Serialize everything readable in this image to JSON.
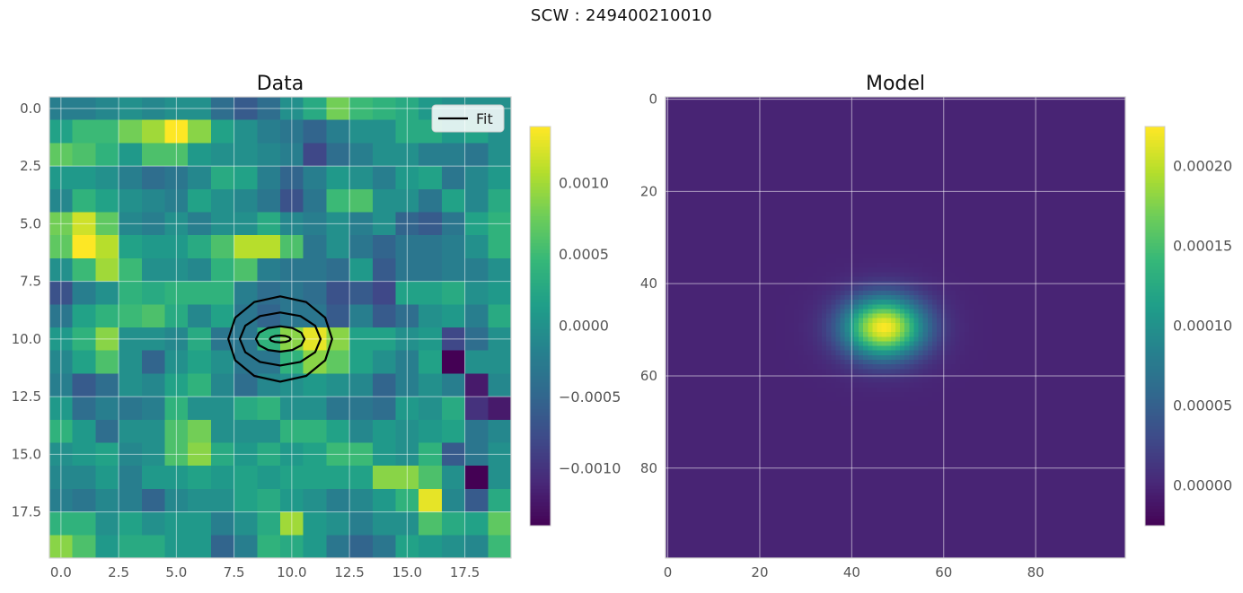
{
  "figure": {
    "suptitle": "SCW : 249400210010"
  },
  "chart_data": [
    {
      "type": "heatmap",
      "title": "Data",
      "xlabel": "",
      "ylabel": "",
      "xlim": [
        -0.5,
        19.5
      ],
      "ylim": [
        19.5,
        -0.5
      ],
      "xticks": [
        "0.0",
        "2.5",
        "5.0",
        "7.5",
        "10.0",
        "12.5",
        "15.0",
        "17.5"
      ],
      "yticks": [
        "0.0",
        "2.5",
        "5.0",
        "7.5",
        "10.0",
        "12.5",
        "15.0",
        "17.5"
      ],
      "xtick_values": [
        0,
        2.5,
        5,
        7.5,
        10,
        12.5,
        15,
        17.5
      ],
      "ytick_values": [
        0,
        2.5,
        5,
        7.5,
        10,
        12.5,
        15,
        17.5
      ],
      "grid": true,
      "colormap": "viridis",
      "vmin": -0.0014,
      "vmax": 0.0014,
      "colorbar_ticks": [
        "0.0010",
        "0.0005",
        "0.0000",
        "−0.0005",
        "−0.0010"
      ],
      "colorbar_tick_values": [
        0.001,
        0.0005,
        0.0,
        -0.0005,
        -0.001
      ],
      "legend": {
        "label": "Fit",
        "position": "upper right"
      },
      "contours": {
        "center": [
          9.5,
          10.0
        ],
        "rings": [
          {
            "rx": 0.45,
            "ry": 0.15
          },
          {
            "rx": 1.05,
            "ry": 0.55
          },
          {
            "rx": 1.75,
            "ry": 1.15
          },
          {
            "rx": 2.25,
            "ry": 1.85
          }
        ]
      },
      "values": [
        [
          -0.0002,
          -0.0002,
          -0.0001,
          0.0,
          -0.0001,
          0.0,
          0.0,
          -0.0004,
          -0.0006,
          -0.0004,
          0.0,
          0.0003,
          0.0008,
          0.0005,
          0.0004,
          0.0003,
          0.0001,
          0.0,
          0.0,
          0.0
        ],
        [
          0.0002,
          0.0005,
          0.0005,
          0.0008,
          0.001,
          0.0014,
          0.0009,
          0.0002,
          0.0,
          -0.0002,
          -0.0003,
          -0.0005,
          -0.0002,
          0.0,
          0.0,
          0.0003,
          0.0003,
          0.0001,
          0.0002,
          0.0
        ],
        [
          0.0007,
          0.0006,
          0.0004,
          0.0001,
          0.0006,
          0.0006,
          0.0001,
          0.0,
          0.0,
          -0.0001,
          -0.0002,
          -0.0008,
          -0.0004,
          -0.0002,
          0.0,
          0.0,
          -0.0002,
          -0.0002,
          -0.0003,
          0.0
        ],
        [
          0.0001,
          0.0001,
          0.0,
          -0.0002,
          -0.0004,
          -0.0003,
          -0.0001,
          0.0003,
          0.0002,
          -0.0002,
          -0.0005,
          -0.0002,
          0.0001,
          0.0,
          -0.0002,
          0.0001,
          0.0002,
          -0.0003,
          -0.0001,
          0.0001
        ],
        [
          -0.0001,
          0.0004,
          0.0002,
          0.0,
          -0.0001,
          -0.0002,
          0.0002,
          0.0,
          -0.0001,
          -0.0003,
          -0.0007,
          -0.0003,
          0.0005,
          0.0006,
          0.0,
          0.0,
          -0.0003,
          0.0002,
          -0.0001,
          0.0003
        ],
        [
          0.0008,
          0.0012,
          0.0007,
          -0.0001,
          -0.0002,
          0.0,
          -0.0002,
          0.0,
          0.0,
          0.0003,
          -0.0001,
          -0.0002,
          0.0,
          -0.0002,
          0.0,
          -0.0005,
          -0.0006,
          -0.0003,
          0.0002,
          0.0004
        ],
        [
          0.0007,
          0.0014,
          0.0011,
          0.0002,
          0.0001,
          0.0001,
          0.0003,
          0.0006,
          0.0011,
          0.0011,
          0.0006,
          -0.0003,
          0.0,
          -0.0003,
          -0.0005,
          -0.0003,
          -0.0003,
          -0.0002,
          0.0,
          0.0004
        ],
        [
          0.0,
          0.0005,
          0.001,
          0.0005,
          0.0,
          0.0,
          -0.0001,
          0.0004,
          0.0006,
          -0.0002,
          -0.0003,
          -0.0003,
          -0.0004,
          0.0001,
          -0.0006,
          -0.0003,
          -0.0003,
          -0.0002,
          -0.0002,
          0.0
        ],
        [
          -0.0007,
          -0.0002,
          0.0,
          0.0004,
          0.0003,
          0.0004,
          0.0004,
          0.0004,
          -0.0002,
          -0.0004,
          -0.0003,
          -0.0004,
          -0.0007,
          -0.0006,
          -0.0008,
          0.0002,
          0.0002,
          0.0003,
          0.0,
          0.0001
        ],
        [
          -0.0003,
          0.0002,
          0.0004,
          0.0005,
          0.0006,
          0.0003,
          -0.0001,
          0.0002,
          -0.0003,
          -0.0005,
          -0.0003,
          -0.0003,
          -0.0006,
          -0.0002,
          -0.0006,
          -0.0004,
          0.0,
          0.0001,
          -0.0002,
          0.0003
        ],
        [
          0.0001,
          0.0004,
          0.0009,
          0.0,
          0.0,
          -0.0001,
          0.0003,
          -0.0003,
          -0.0003,
          0.0004,
          0.0009,
          0.0013,
          0.0009,
          0.0002,
          0.0002,
          0.0,
          0.0001,
          -0.0008,
          -0.0004,
          0.0
        ],
        [
          -0.0001,
          0.0002,
          0.0006,
          0.0,
          -0.0005,
          0.0,
          0.0002,
          0.0,
          -0.0003,
          -0.0003,
          0.0004,
          0.0009,
          0.0007,
          0.0002,
          0.0,
          -0.0002,
          0.0002,
          -0.0014,
          0.0,
          0.0
        ],
        [
          -0.0002,
          -0.0006,
          -0.0004,
          0.0,
          -0.0001,
          0.0002,
          0.0004,
          -0.0001,
          -0.0004,
          -0.0001,
          0.0,
          0.0001,
          0.0,
          -0.0001,
          -0.0005,
          -0.0002,
          0.0,
          -0.0002,
          -0.0012,
          -0.0001
        ],
        [
          0.0001,
          -0.0004,
          -0.0002,
          -0.0003,
          -0.0002,
          0.0004,
          0.0,
          0.0,
          0.0003,
          0.0004,
          0.0,
          0.0,
          -0.0003,
          -0.0003,
          -0.0004,
          0.0001,
          0.0,
          0.0003,
          -0.001,
          -0.0012
        ],
        [
          0.0004,
          0.0001,
          -0.0004,
          0.0,
          0.0,
          0.0006,
          0.0008,
          0.0,
          0.0,
          0.0,
          0.0004,
          0.0004,
          0.0002,
          -0.0001,
          0.0001,
          0.0,
          0.0001,
          0.0002,
          -0.0003,
          -0.0001
        ],
        [
          0.0,
          0.0001,
          0.0002,
          -0.0001,
          0.0,
          0.0006,
          0.0009,
          0.0003,
          0.0001,
          0.0003,
          0.0001,
          0.0002,
          0.0005,
          0.0005,
          0.0001,
          0.0,
          0.0004,
          -0.0006,
          -0.0003,
          0.0
        ],
        [
          -0.0001,
          -0.0001,
          0.0001,
          -0.0002,
          0.0001,
          0.0001,
          0.0002,
          0.0001,
          0.0002,
          0.0001,
          0.0002,
          0.0002,
          0.0002,
          0.0002,
          0.0009,
          0.0009,
          0.0006,
          0.0,
          -0.0014,
          0.0
        ],
        [
          -0.0002,
          -0.0003,
          -0.0001,
          -0.0002,
          -0.0005,
          -0.0001,
          0.0,
          0.0,
          0.0002,
          0.0003,
          0.0001,
          0.0,
          -0.0002,
          -0.0001,
          0.0001,
          0.0004,
          0.0013,
          -0.0001,
          -0.0006,
          0.0003
        ],
        [
          0.0004,
          0.0004,
          0.0,
          0.0002,
          0.0,
          0.0001,
          0.0001,
          -0.0002,
          0.0,
          0.0003,
          0.001,
          0.0001,
          0.0,
          -0.0002,
          0.0,
          0.0,
          0.0006,
          0.0003,
          0.0002,
          0.0007
        ],
        [
          0.0009,
          0.0006,
          0.0001,
          0.0003,
          0.0003,
          0.0001,
          0.0001,
          -0.0005,
          -0.0002,
          0.0004,
          0.0003,
          0.0001,
          -0.0003,
          -0.0005,
          -0.0003,
          0.0002,
          0.0001,
          0.0,
          -0.0001,
          0.0005
        ]
      ]
    },
    {
      "type": "heatmap",
      "title": "Model",
      "xlabel": "",
      "ylabel": "",
      "xlim": [
        -0.5,
        99.5
      ],
      "ylim": [
        99.5,
        -0.5
      ],
      "xticks": [
        "0",
        "20",
        "40",
        "60",
        "80"
      ],
      "yticks": [
        "0",
        "20",
        "40",
        "60",
        "80"
      ],
      "xtick_values": [
        0,
        20,
        40,
        60,
        80
      ],
      "ytick_values": [
        0,
        20,
        40,
        60,
        80
      ],
      "grid": true,
      "colormap": "viridis",
      "vmin": -2.5e-05,
      "vmax": 0.000225,
      "colorbar_ticks": [
        "0.00020",
        "0.00015",
        "0.00010",
        "0.00005",
        "0.00000"
      ],
      "colorbar_tick_values": [
        0.0002,
        0.00015,
        0.0001,
        5e-05,
        0.0
      ],
      "gaussian": {
        "center_x": 47,
        "center_y": 49.5,
        "sigma_x": 6,
        "sigma_y": 4.5,
        "amplitude": 0.000225
      }
    }
  ]
}
